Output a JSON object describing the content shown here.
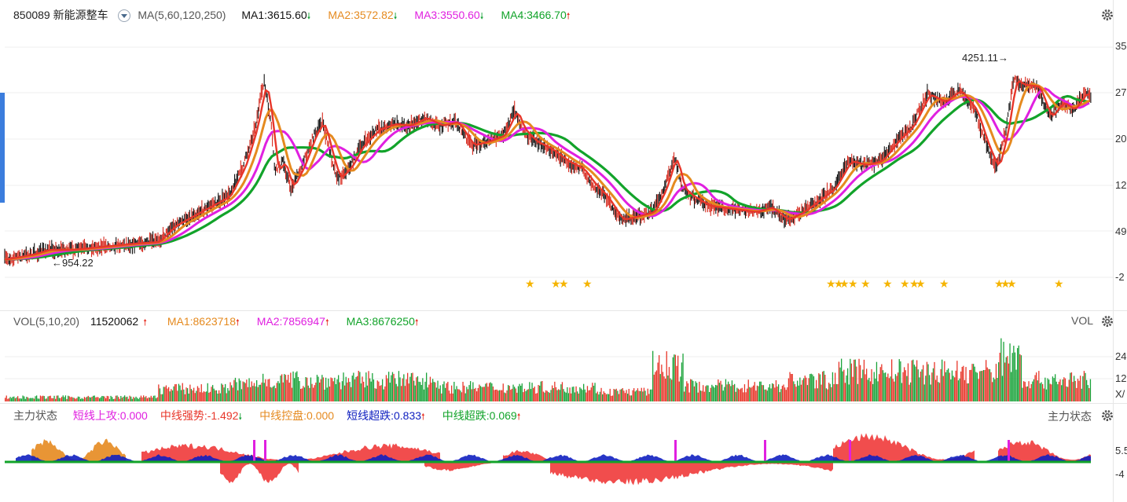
{
  "main": {
    "code_name": "850089 新能源整车",
    "ma_params": "MA(5,60,120,250)",
    "ma_items": [
      {
        "label": "MA1:3615.60",
        "dir": "down",
        "color": "#111111"
      },
      {
        "label": "MA2:3572.82",
        "dir": "down",
        "color": "#e58a1f"
      },
      {
        "label": "MA3:3550.60",
        "dir": "down",
        "color": "#e020e0"
      },
      {
        "label": "MA4:3466.70",
        "dir": "up",
        "color": "#12a32a"
      }
    ],
    "high_annot": "4251.11→",
    "low_annot": "←954.22",
    "axis_ticks": [
      "35",
      "27",
      "20",
      "12",
      "49",
      "-2"
    ]
  },
  "volume": {
    "params": "VOL(5,10,20)",
    "value": "11520062",
    "value_dir": "up",
    "ma_items": [
      {
        "label": "MA1:8623718",
        "dir": "up",
        "color": "#e58a1f"
      },
      {
        "label": "MA2:7856947",
        "dir": "up",
        "color": "#e020e0"
      },
      {
        "label": "MA3:8676250",
        "dir": "up",
        "color": "#12a32a"
      }
    ],
    "right_label": "VOL",
    "axis_ticks": [
      "24",
      "12",
      "X/"
    ]
  },
  "indicator": {
    "title": "主力状态",
    "items": [
      {
        "label": "短线上攻:0.000",
        "dir": "",
        "color": "#e020e0"
      },
      {
        "label": "中线强势:-1.492",
        "dir": "down",
        "color": "#e8362a"
      },
      {
        "label": "中线控盘:0.000",
        "dir": "",
        "color": "#e58a1f"
      },
      {
        "label": "短线超跌:0.833",
        "dir": "up",
        "color": "#1020c0"
      },
      {
        "label": "中线超跌:0.069",
        "dir": "up",
        "color": "#12a32a"
      }
    ],
    "right_label": "主力状态",
    "axis_ticks": [
      "5.5",
      "-4"
    ]
  },
  "colors": {
    "up": "#e8362a",
    "down": "#1aa33a",
    "ma1": "#e8362a",
    "ma2": "#e58a1f",
    "ma3": "#e020e0",
    "ma4": "#12a32a",
    "star": "#f5b400"
  }
}
